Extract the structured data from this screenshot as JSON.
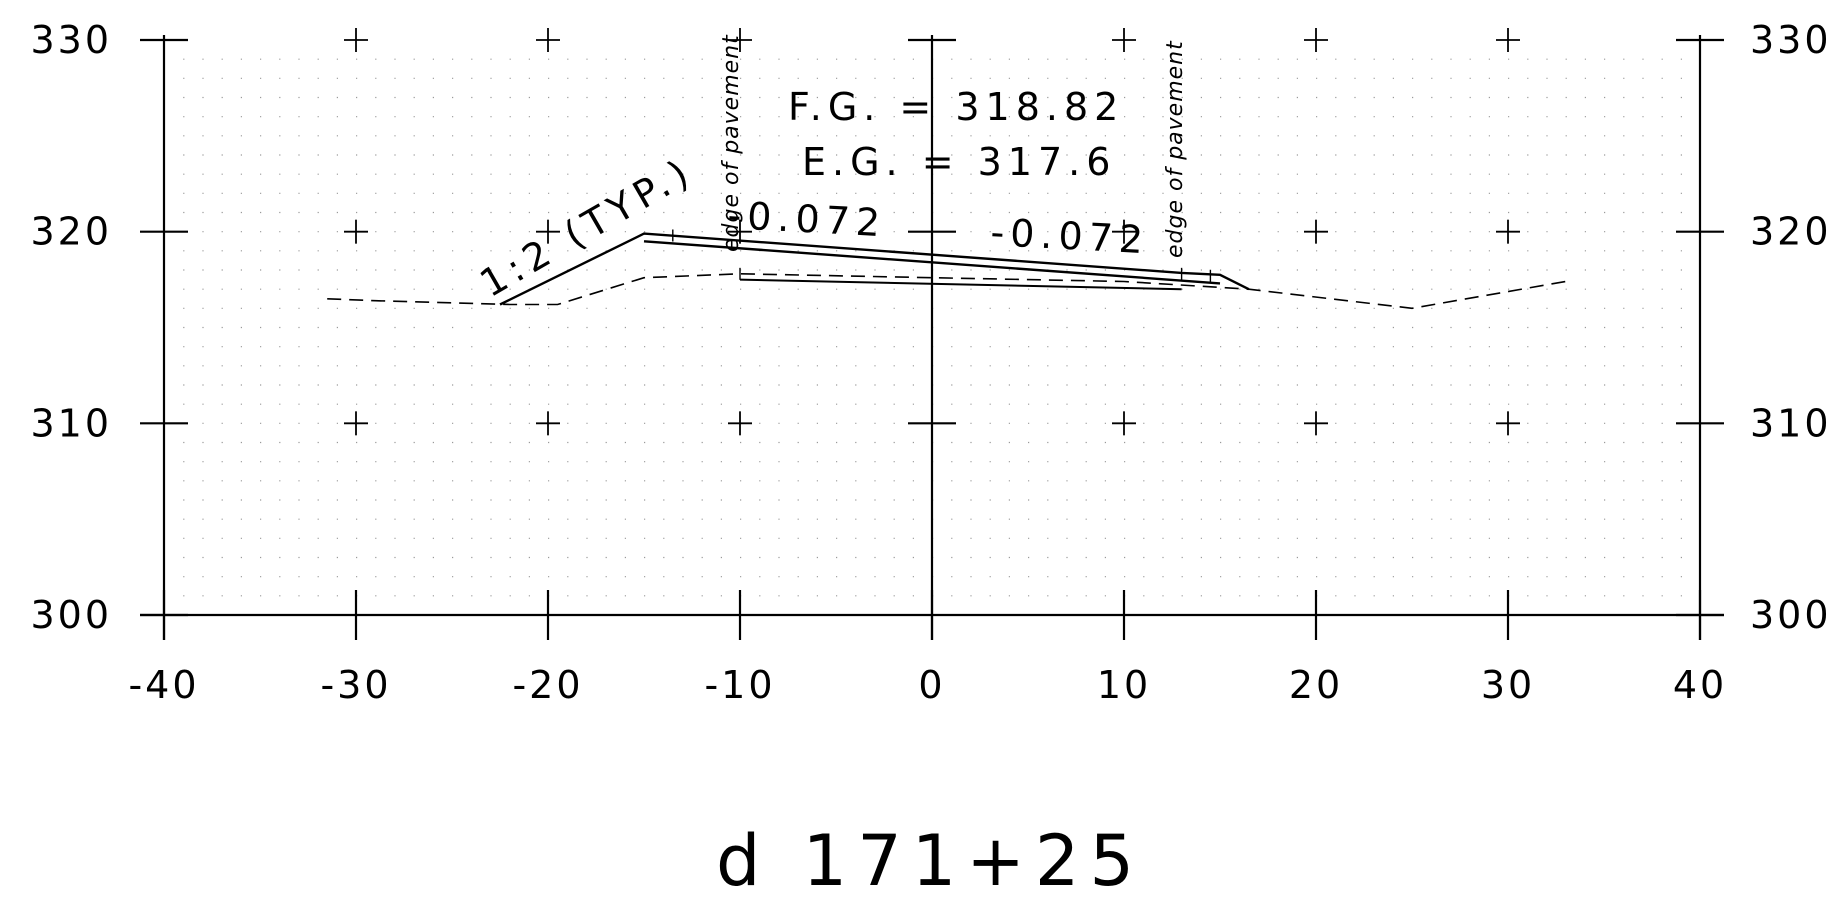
{
  "chart_data": {
    "type": "cross-section",
    "x_range": [
      -40,
      40
    ],
    "y_range": [
      300,
      330
    ],
    "x_ticks": [
      "-40",
      "-30",
      "-20",
      "-10",
      "0",
      "10",
      "20",
      "30",
      "40"
    ],
    "y_ticks": [
      "300",
      "310",
      "320",
      "330"
    ],
    "grid": "dotted",
    "annotations": {
      "fg": "F.G. = 318.82",
      "eg": "E.G. = 317.6",
      "slope_left": "-0.072",
      "slope_right": "-0.072",
      "side_slope": "1:2 (TYP.)",
      "edge_left": "edge of pavement",
      "edge_right": "edge of pavement",
      "station": "d 171+25"
    },
    "existing_ground": [
      [
        -31.5,
        316.5
      ],
      [
        -29,
        316.4
      ],
      [
        -22,
        316.2
      ],
      [
        -19.5,
        316.2
      ],
      [
        -15,
        317.6
      ],
      [
        -10,
        317.8
      ],
      [
        0,
        317.6
      ],
      [
        10,
        317.4
      ],
      [
        16.5,
        317.0
      ],
      [
        25,
        316.0
      ],
      [
        33,
        317.4
      ]
    ],
    "proposed_grade_top": [
      [
        -22.5,
        316.2
      ],
      [
        -15,
        319.9
      ],
      [
        13,
        317.85
      ],
      [
        15,
        317.75
      ],
      [
        16.5,
        317.0
      ]
    ],
    "proposed_grade_surface": [
      [
        -15,
        319.5
      ],
      [
        15,
        317.3
      ]
    ],
    "subgrade": [
      [
        -10,
        317.5
      ],
      [
        13,
        317.0
      ]
    ]
  }
}
